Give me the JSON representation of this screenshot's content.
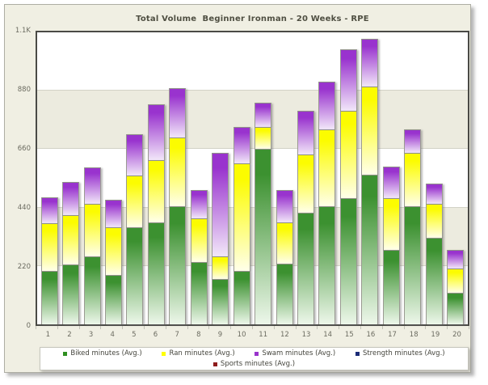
{
  "title": "Total Volume  Beginner Ironman - 20 Weeks - RPE",
  "chart_data": {
    "type": "bar",
    "stacked": true,
    "title": "Total Volume  Beginner Ironman - 20 Weeks - RPE",
    "xlabel": "",
    "ylabel": "",
    "ylim": [
      0,
      1100
    ],
    "grid": true,
    "legend_position": "bottom",
    "categories": [
      "1",
      "2",
      "3",
      "4",
      "5",
      "6",
      "7",
      "8",
      "9",
      "10",
      "11",
      "12",
      "13",
      "14",
      "15",
      "16",
      "17",
      "18",
      "19",
      "20"
    ],
    "yticks": [
      {
        "value": 0,
        "label": "0"
      },
      {
        "value": 220,
        "label": "220"
      },
      {
        "value": 440,
        "label": "440"
      },
      {
        "value": 660,
        "label": "660"
      },
      {
        "value": 880,
        "label": "880"
      },
      {
        "value": 1100,
        "label": "1.1K"
      }
    ],
    "shaded_bands": [
      [
        220,
        440
      ],
      [
        660,
        880
      ]
    ],
    "series": [
      {
        "name": "Biked minutes (Avg.)",
        "legend_color": "#2E8F1F",
        "gradient_top": "#3C9130",
        "gradient_bottom": "#EDF7EA",
        "values": [
          200,
          225,
          255,
          185,
          365,
          385,
          445,
          235,
          170,
          200,
          660,
          230,
          420,
          445,
          475,
          565,
          280,
          445,
          325,
          120
        ]
      },
      {
        "name": "Ran minutes (Avg.)",
        "legend_color": "#FFFF00",
        "gradient_top": "#FCFC00",
        "gradient_bottom": "#FFFFEA",
        "values": [
          180,
          185,
          200,
          180,
          195,
          235,
          260,
          165,
          85,
          405,
          85,
          155,
          220,
          290,
          330,
          330,
          195,
          200,
          130,
          90
        ]
      },
      {
        "name": "Swam minutes (Avg.)",
        "legend_color": "#9933CC",
        "gradient_top": "#9933CE",
        "gradient_bottom": "#F2E7F9",
        "values": [
          100,
          125,
          135,
          105,
          155,
          210,
          185,
          105,
          390,
          140,
          90,
          120,
          165,
          180,
          230,
          180,
          120,
          90,
          75,
          70
        ]
      },
      {
        "name": "Strength minutes (Avg.)",
        "legend_color": "#1B2B77",
        "gradient_top": "#1B2B77",
        "gradient_bottom": "#DDE2F2",
        "values": [
          0,
          0,
          0,
          0,
          0,
          0,
          0,
          0,
          0,
          0,
          0,
          0,
          0,
          0,
          0,
          0,
          0,
          0,
          0,
          0
        ]
      },
      {
        "name": "Sports minutes (Avg.)",
        "legend_color": "#8E1B1B",
        "gradient_top": "#8E1B1B",
        "gradient_bottom": "#F2DDDD",
        "values": [
          0,
          0,
          0,
          0,
          0,
          0,
          0,
          0,
          0,
          0,
          0,
          0,
          0,
          0,
          0,
          0,
          0,
          0,
          0,
          0
        ]
      }
    ],
    "colors": {
      "frame_background": "#F0EFE3",
      "band_gray": "#ECEBDF",
      "plot_border": "#4A4A46",
      "gridline": "#D2D2C6",
      "axis_text": "#6B6B60",
      "title_text": "#4F4F42"
    }
  }
}
